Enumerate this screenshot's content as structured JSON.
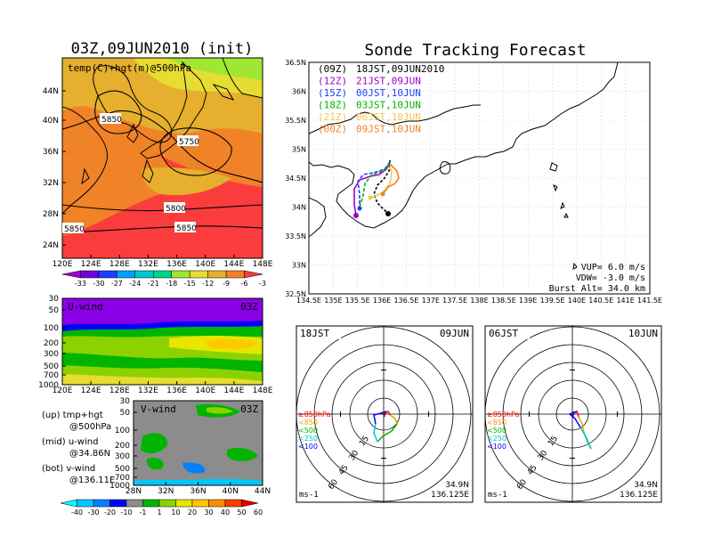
{
  "titles": {
    "left": "03Z,09JUN2010 (init)",
    "right": "Sonde Tracking Forecast"
  },
  "top_map": {
    "label": "temp(C)+hgt(m)@500hPa",
    "lat_ticks": [
      "44N",
      "40N",
      "36N",
      "32N",
      "28N",
      "24N"
    ],
    "lon_ticks": [
      "120E",
      "124E",
      "128E",
      "132E",
      "136E",
      "140E",
      "144E",
      "148E"
    ],
    "contour_labels": [
      "5850",
      "5750",
      "5800",
      "5850",
      "5850"
    ]
  },
  "colorbar_temp": [
    "-33",
    "-30",
    "-27",
    "-24",
    "-21",
    "-18",
    "-15",
    "-12",
    "-9",
    "-6",
    "-3"
  ],
  "colors": {
    "temp": [
      "#a000c8",
      "#6e00dc",
      "#1e3cff",
      "#00a0ff",
      "#00c8c8",
      "#00d28c",
      "#a0e632",
      "#e6dc32",
      "#e6af2d",
      "#f08228",
      "#fa3c3c"
    ],
    "wind": [
      "#00ffff",
      "#00c8ff",
      "#0080ff",
      "#0000ff",
      "#8c8c8c",
      "#00b400",
      "#8cd200",
      "#e6e600",
      "#ffc800",
      "#ff8c00",
      "#ff3c00",
      "#e60000"
    ],
    "sonde": {
      "09Z": "#000000",
      "12Z": "#a000c8",
      "15Z": "#1e3cff",
      "18Z": "#00b400",
      "21Z": "#f0c850",
      "00Z": "#f08228"
    }
  },
  "u_panel": {
    "label": "U-wind",
    "time": "03Z",
    "p_ticks": [
      "30",
      "50",
      "100",
      "200",
      "300",
      "500",
      "700",
      "1000"
    ],
    "lon_ticks": [
      "120E",
      "124E",
      "128E",
      "132E",
      "136E",
      "140E",
      "144E",
      "148E"
    ]
  },
  "v_panel": {
    "label": "V-wind",
    "time": "03Z",
    "p_ticks": [
      "30",
      "50",
      "100",
      "200",
      "300",
      "500",
      "700",
      "1000"
    ],
    "lat_ticks": [
      "28N",
      "32N",
      "36N",
      "40N",
      "44N"
    ]
  },
  "legend_text": {
    "up": "(up) tmp+hgt",
    "up2": "@500hPa",
    "mid": "(mid) u-wind",
    "mid2": "@34.86N",
    "bot": "(bot) v-wind",
    "bot2": "@136.11E"
  },
  "colorbar_wind": [
    "-40",
    "-30",
    "-20",
    "-10",
    "-1",
    "1",
    "10",
    "20",
    "30",
    "40",
    "50",
    "60"
  ],
  "track_map": {
    "launches": [
      {
        "code": "(09Z)",
        "time": "18JST,09JUN2010"
      },
      {
        "code": "(12Z)",
        "time": "21JST,09JUN"
      },
      {
        "code": "(15Z)",
        "time": "00JST,10JUN"
      },
      {
        "code": "(18Z)",
        "time": "03JST,10JUN"
      },
      {
        "code": "(21Z)",
        "time": "06JST,10JUN"
      },
      {
        "code": "(00Z)",
        "time": "09JST,10JUN"
      }
    ],
    "lat_ticks": [
      "36.5N",
      "36N",
      "35.5N",
      "35N",
      "34.5N",
      "34N",
      "33.5N",
      "33N",
      "32.5N"
    ],
    "lon_ticks": [
      "134.5E",
      "135E",
      "135.5E",
      "136E",
      "136.5E",
      "137E",
      "137.5E",
      "138E",
      "138.5E",
      "139E",
      "139.5E",
      "140E",
      "140.5E",
      "141E",
      "141.5E"
    ],
    "params": [
      "VUP= 6.0 m/s",
      "VDW= -3.0 m/s",
      "Burst Alt= 34.0 km"
    ]
  },
  "hodo_left": {
    "time": "18JST",
    "date": "09JUN",
    "ring_labels": [
      "15",
      "30",
      "45",
      "60"
    ],
    "levels": [
      "≥850hPa",
      "<850",
      "<500",
      "<250",
      "<100"
    ],
    "unit": "ms-1",
    "loc1": "34.9N",
    "loc2": "136.125E"
  },
  "hodo_right": {
    "time": "06JST",
    "date": "10JUN",
    "ring_labels": [
      "15",
      "30",
      "45",
      "60"
    ],
    "levels": [
      "≥850hPa",
      "<850",
      "<500",
      "<250",
      "<100"
    ],
    "unit": "ms-1",
    "loc1": "34.9N",
    "loc2": "136.125E"
  }
}
